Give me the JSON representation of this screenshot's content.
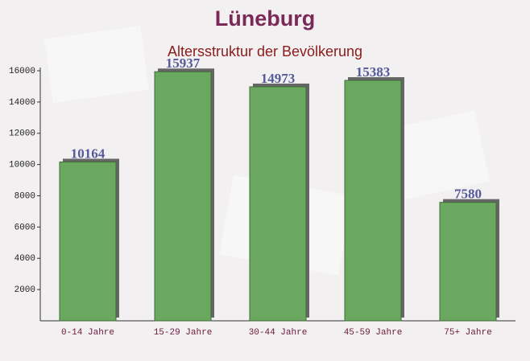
{
  "chart_data": {
    "type": "bar",
    "title": "Lüneburg",
    "subtitle": "Altersstruktur der Bevölkerung",
    "categories": [
      "0-14 Jahre",
      "15-29 Jahre",
      "30-44 Jahre",
      "45-59 Jahre",
      "75+ Jahre"
    ],
    "values": [
      10164,
      15937,
      14973,
      15383,
      7580
    ],
    "color": "#6aa85f",
    "ylim": [
      0,
      16000
    ],
    "yticks": [
      2000,
      4000,
      6000,
      8000,
      10000,
      12000,
      14000,
      16000
    ]
  }
}
